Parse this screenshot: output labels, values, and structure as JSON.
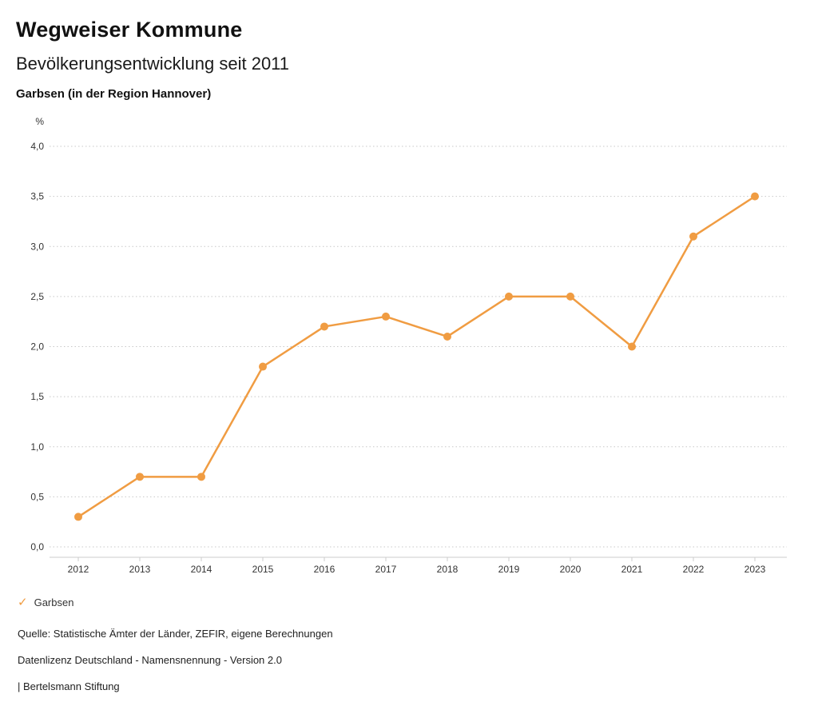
{
  "header": {
    "title": "Wegweiser Kommune",
    "subtitle": "Bevölkerungsentwicklung seit 2011",
    "chart_title": "Garbsen (in der Region Hannover)"
  },
  "chart_data": {
    "type": "line",
    "unit_label": "%",
    "categories": [
      "2012",
      "2013",
      "2014",
      "2015",
      "2016",
      "2017",
      "2018",
      "2019",
      "2020",
      "2021",
      "2022",
      "2023"
    ],
    "series": [
      {
        "name": "Garbsen",
        "color": "#F09C42",
        "values": [
          0.3,
          0.7,
          0.7,
          1.8,
          2.2,
          2.3,
          2.1,
          2.5,
          2.5,
          2.0,
          3.1,
          3.5
        ]
      }
    ],
    "ylim": [
      0,
      4
    ],
    "ytick_step": 0.5,
    "ytick_labels": [
      "0,0",
      "0,5",
      "1,0",
      "1,5",
      "2,0",
      "2,5",
      "3,0",
      "3,5",
      "4,0"
    ],
    "grid": "horizontal-dotted",
    "legend_position": "bottom-left"
  },
  "legend": {
    "items": [
      {
        "label": "Garbsen",
        "color": "#F09C42",
        "marker": "check"
      }
    ],
    "check_glyph": "✓"
  },
  "footer": {
    "source": "Quelle: Statistische Ämter der Länder, ZEFIR, eigene Berechnungen",
    "license": "Datenlizenz Deutschland - Namensnennung - Version 2.0",
    "attribution": "| Bertelsmann Stiftung"
  }
}
